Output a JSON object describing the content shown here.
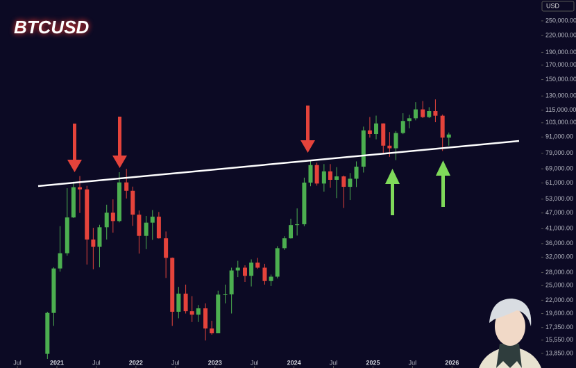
{
  "chart_data": {
    "type": "candlestick",
    "title": "BTCUSD",
    "currency": "USD",
    "log_scale": true,
    "up_color": "#4caf50",
    "down_color": "#e5433b",
    "x": [
      2020.88,
      2020.96,
      2021.04,
      2021.13,
      2021.21,
      2021.29,
      2021.38,
      2021.46,
      2021.54,
      2021.63,
      2021.71,
      2021.79,
      2021.88,
      2021.96,
      2022.04,
      2022.13,
      2022.21,
      2022.29,
      2022.38,
      2022.46,
      2022.54,
      2022.63,
      2022.71,
      2022.79,
      2022.88,
      2022.96,
      2023.04,
      2023.13,
      2023.21,
      2023.29,
      2023.38,
      2023.46,
      2023.54,
      2023.63,
      2023.71,
      2023.79,
      2023.88,
      2023.96,
      2024.04,
      2024.13,
      2024.21,
      2024.29,
      2024.38,
      2024.46,
      2024.54,
      2024.63,
      2024.71,
      2024.79,
      2024.88,
      2024.96,
      2025.04,
      2025.13,
      2025.21,
      2025.29,
      2025.38,
      2025.46,
      2025.54,
      2025.63,
      2025.71,
      2025.79,
      2025.88,
      2025.96
    ],
    "open": [
      13800,
      19700,
      29000,
      33100,
      45200,
      58800,
      57700,
      37300,
      35000,
      41500,
      47100,
      43800,
      61300,
      57000,
      46300,
      38500,
      43200,
      45500,
      37700,
      31800,
      19900,
      23300,
      20000,
      19400,
      20500,
      17200,
      16500,
      23100,
      23150,
      28500,
      29200,
      27200,
      30500,
      29200,
      26000,
      27000,
      34600,
      37700,
      42300,
      42600,
      61200,
      71300,
      60700,
      67500,
      62700,
      64600,
      59000,
      63300,
      70300,
      96400,
      93400,
      102400,
      84400,
      82500,
      94200,
      104600,
      107100,
      115700,
      108200,
      114000,
      109500,
      90500
    ],
    "high": [
      19900,
      29300,
      41900,
      58300,
      61700,
      64800,
      59500,
      41300,
      42400,
      50500,
      52900,
      67000,
      69000,
      59100,
      48000,
      45800,
      48200,
      47400,
      40000,
      31900,
      24700,
      25200,
      22800,
      21100,
      21400,
      18400,
      23900,
      25200,
      29200,
      31000,
      29800,
      31400,
      31800,
      30200,
      27500,
      35200,
      38400,
      44700,
      48900,
      63900,
      73800,
      72800,
      71900,
      71900,
      70000,
      65100,
      66500,
      73600,
      99600,
      108300,
      109600,
      102500,
      95000,
      95800,
      111900,
      110400,
      123200,
      124400,
      117900,
      126200,
      110600,
      94600
    ],
    "low": [
      13200,
      17600,
      28200,
      32400,
      45000,
      47000,
      30000,
      28800,
      29300,
      37300,
      39600,
      43300,
      53300,
      42000,
      33000,
      34300,
      37200,
      37600,
      26700,
      17600,
      18800,
      19600,
      18200,
      18200,
      15500,
      16300,
      16500,
      21400,
      19600,
      26900,
      25800,
      24800,
      28900,
      25200,
      24900,
      26600,
      34100,
      37600,
      38600,
      41900,
      59300,
      59600,
      56600,
      58500,
      53500,
      49100,
      52600,
      58900,
      66800,
      90500,
      89200,
      78200,
      76600,
      74400,
      93300,
      98200,
      105200,
      107300,
      107300,
      103500,
      80600,
      84400
    ],
    "close": [
      19700,
      29000,
      33100,
      45200,
      58800,
      57700,
      37300,
      35000,
      41500,
      47100,
      43800,
      61300,
      57000,
      46300,
      38500,
      43200,
      45500,
      37700,
      31800,
      19900,
      23300,
      20000,
      19400,
      20500,
      17200,
      16500,
      23100,
      23150,
      28500,
      29200,
      27200,
      30500,
      29200,
      26000,
      27000,
      34600,
      37700,
      42300,
      42600,
      61200,
      71300,
      60700,
      67500,
      62700,
      64600,
      59000,
      63300,
      70300,
      96400,
      93400,
      102400,
      84400,
      82500,
      94200,
      104600,
      107100,
      115700,
      108200,
      114000,
      109500,
      90500,
      93000
    ],
    "xlim": [
      2020.28,
      2027.13
    ],
    "xticks": [
      {
        "value": 2020.5,
        "label": "Jul"
      },
      2021,
      {
        "value": 2021.5,
        "label": "Jul"
      },
      2022,
      {
        "value": 2022.5,
        "label": "Jul"
      },
      2023,
      {
        "value": 2023.5,
        "label": "Jul"
      },
      2024,
      {
        "value": 2024.5,
        "label": "Jul"
      },
      2025,
      {
        "value": 2025.5,
        "label": "Jul"
      },
      2026
    ],
    "ylim": [
      12200,
      299650
    ],
    "yticks": [
      {
        "value": 250000,
        "label": "250,000.00"
      },
      {
        "value": 220000,
        "label": "220,000.00"
      },
      {
        "value": 190000,
        "label": "190,000.00"
      },
      {
        "value": 170000,
        "label": "170,000.00"
      },
      {
        "value": 150000,
        "label": "150,000.00"
      },
      {
        "value": 130000,
        "label": "130,000.00"
      },
      {
        "value": 115000,
        "label": "115,000.00"
      },
      {
        "value": 103000,
        "label": "103,000.00"
      },
      {
        "value": 91000,
        "label": "91,000.00"
      },
      {
        "value": 79000,
        "label": "79,000.00"
      },
      {
        "value": 69000,
        "label": "69,000.00"
      },
      {
        "value": 61000,
        "label": "61,000.00"
      },
      {
        "value": 53000,
        "label": "53,000.00"
      },
      {
        "value": 47000,
        "label": "47,000.00"
      },
      {
        "value": 41000,
        "label": "41,000.00"
      },
      {
        "value": 36000,
        "label": "36,000.00"
      },
      {
        "value": 32000,
        "label": "32,000.00"
      },
      {
        "value": 28000,
        "label": "28,000.00"
      },
      {
        "value": 25000,
        "label": "25,000.00"
      },
      {
        "value": 22000,
        "label": "22,000.00"
      },
      {
        "value": 19600,
        "label": "19,600.00"
      },
      {
        "value": 17350,
        "label": "17,350.00"
      },
      {
        "value": 15550,
        "label": "15,550.00"
      },
      {
        "value": 13850,
        "label": "13,850.00"
      }
    ]
  }
}
